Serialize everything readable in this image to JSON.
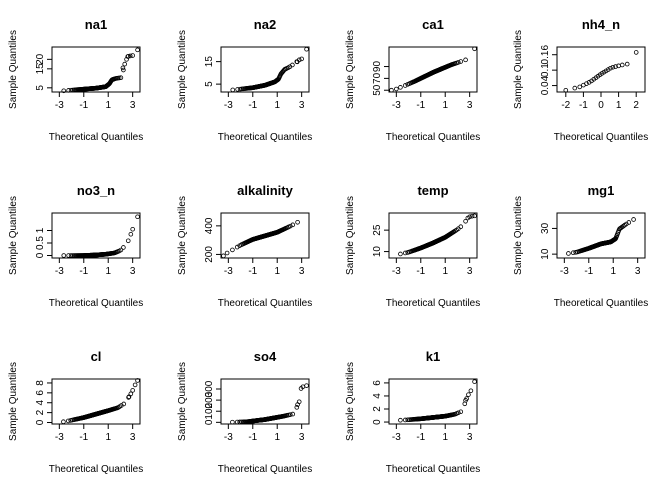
{
  "chart_data": [
    {
      "type": "scatter",
      "title": "na1",
      "xlabel": "Theoretical Quantiles",
      "ylabel": "Sample Quantiles",
      "xlim": [
        -3.6,
        3.6
      ],
      "xticks": [
        -3,
        -1,
        1,
        3
      ],
      "ylim": [
        2.8,
        26.5
      ],
      "yticks": [
        5,
        15,
        20
      ],
      "n": 120,
      "q": [
        [
          -3.4,
          3.0
        ],
        [
          -2.0,
          3.8
        ],
        [
          -1.0,
          4.3
        ],
        [
          0,
          4.8
        ],
        [
          0.8,
          5.6
        ],
        [
          1.1,
          7.2
        ],
        [
          1.3,
          9.2
        ],
        [
          1.6,
          9.9
        ],
        [
          2.1,
          10.4
        ],
        [
          2.3,
          16.0
        ],
        [
          2.6,
          21.5
        ],
        [
          3.0,
          22.0
        ],
        [
          3.4,
          25.0
        ]
      ],
      "tail": [
        [
          2.2,
          15.5
        ],
        [
          2.35,
          17.5
        ],
        [
          2.5,
          20.0
        ],
        [
          2.6,
          21.5
        ],
        [
          2.8,
          21.8
        ],
        [
          3.0,
          22.0
        ],
        [
          3.4,
          25.0
        ]
      ]
    },
    {
      "type": "scatter",
      "title": "na2",
      "xlabel": "Theoretical Quantiles",
      "ylabel": "Sample Quantiles",
      "xlim": [
        -3.6,
        3.6
      ],
      "xticks": [
        -3,
        -1,
        1,
        3
      ],
      "ylim": [
        1.5,
        21.5
      ],
      "yticks": [
        5,
        15
      ],
      "n": 120,
      "q": [
        [
          -3.4,
          2.0
        ],
        [
          -2.0,
          2.8
        ],
        [
          -1.0,
          3.4
        ],
        [
          0,
          4.5
        ],
        [
          0.8,
          6.0
        ],
        [
          1.1,
          7.2
        ],
        [
          1.3,
          9.5
        ],
        [
          1.6,
          11.5
        ],
        [
          2.0,
          12.6
        ],
        [
          2.5,
          14.5
        ],
        [
          3.0,
          16.0
        ],
        [
          3.4,
          20.5
        ]
      ],
      "tail": [
        [
          2.6,
          15.0
        ],
        [
          2.8,
          15.8
        ],
        [
          3.0,
          16.2
        ],
        [
          3.4,
          20.5
        ]
      ]
    },
    {
      "type": "scatter",
      "title": "ca1",
      "xlabel": "Theoretical Quantiles",
      "ylabel": "Sample Quantiles",
      "xlim": [
        -3.6,
        3.6
      ],
      "xticks": [
        -3,
        -1,
        1,
        3
      ],
      "ylim": [
        47,
        123
      ],
      "yticks": [
        50,
        70,
        90
      ],
      "n": 130,
      "q": [
        [
          -3.4,
          50
        ],
        [
          -2.5,
          56
        ],
        [
          -1.5,
          65
        ],
        [
          -0.5,
          75
        ],
        [
          0,
          80
        ],
        [
          0.8,
          87
        ],
        [
          1.5,
          93
        ],
        [
          2.5,
          100
        ],
        [
          3.0,
          104
        ],
        [
          3.4,
          120
        ]
      ],
      "tail": [
        [
          -3.4,
          50
        ],
        [
          -3.0,
          52
        ],
        [
          3.4,
          120
        ]
      ]
    },
    {
      "type": "scatter",
      "title": "nh4_n",
      "xlabel": "Theoretical Quantiles",
      "ylabel": "Sample Quantiles",
      "xlim": [
        -2.5,
        2.5
      ],
      "xticks": [
        -2,
        -1,
        0,
        1,
        2
      ],
      "ylim": [
        0.015,
        0.19
      ],
      "yticks": [
        0.04,
        0.1,
        0.16
      ],
      "n": 22,
      "q": [
        [
          -2.1,
          0.02
        ],
        [
          -1.2,
          0.035
        ],
        [
          -0.6,
          0.055
        ],
        [
          0,
          0.085
        ],
        [
          0.6,
          0.11
        ],
        [
          1.2,
          0.12
        ],
        [
          1.6,
          0.125
        ],
        [
          2.1,
          0.18
        ]
      ],
      "tail": []
    },
    {
      "type": "scatter",
      "title": "no3_n",
      "xlabel": "Theoretical Quantiles",
      "ylabel": "Sample Quantiles",
      "xlim": [
        -3.6,
        3.6
      ],
      "xticks": [
        -3,
        -1,
        1,
        3
      ],
      "ylim": [
        -0.1,
        1.7
      ],
      "yticks": [
        0.0,
        0.5,
        1.0
      ],
      "n": 120,
      "q": [
        [
          -3.4,
          0.0
        ],
        [
          -1.0,
          0.0
        ],
        [
          0,
          0.02
        ],
        [
          0.8,
          0.05
        ],
        [
          1.5,
          0.1
        ],
        [
          2.0,
          0.2
        ],
        [
          2.5,
          0.45
        ],
        [
          2.8,
          0.75
        ],
        [
          3.0,
          1.05
        ],
        [
          3.4,
          1.55
        ]
      ],
      "tail": [
        [
          2.85,
          0.85
        ],
        [
          3.0,
          1.05
        ],
        [
          3.4,
          1.55
        ]
      ]
    },
    {
      "type": "scatter",
      "title": "alkalinity",
      "xlabel": "Theoretical Quantiles",
      "ylabel": "Sample Quantiles",
      "xlim": [
        -3.6,
        3.6
      ],
      "xticks": [
        -3,
        -1,
        1,
        3
      ],
      "ylim": [
        175,
        490
      ],
      "yticks": [
        200,
        400
      ],
      "n": 130,
      "q": [
        [
          -3.4,
          190
        ],
        [
          -3.0,
          215
        ],
        [
          -2.0,
          265
        ],
        [
          -1.0,
          305
        ],
        [
          0,
          330
        ],
        [
          1.0,
          355
        ],
        [
          2.0,
          395
        ],
        [
          3.0,
          440
        ],
        [
          3.4,
          460
        ]
      ],
      "tail": [
        [
          -3.4,
          190
        ],
        [
          -3.1,
          210
        ]
      ]
    },
    {
      "type": "scatter",
      "title": "temp",
      "xlabel": "Theoretical Quantiles",
      "ylabel": "Sample Quantiles",
      "xlim": [
        -3.6,
        3.6
      ],
      "xticks": [
        -3,
        -1,
        1,
        3
      ],
      "ylim": [
        5.5,
        37
      ],
      "yticks": [
        10,
        25
      ],
      "n": 130,
      "q": [
        [
          -3.4,
          7.0
        ],
        [
          -2.0,
          9.5
        ],
        [
          -1.0,
          12.5
        ],
        [
          0,
          16.0
        ],
        [
          1.0,
          20.0
        ],
        [
          2.0,
          25.5
        ],
        [
          2.5,
          29.0
        ],
        [
          2.8,
          33.0
        ],
        [
          3.0,
          34.5
        ],
        [
          3.4,
          35.0
        ]
      ],
      "tail": [
        [
          2.85,
          33.5
        ],
        [
          3.0,
          34.3
        ],
        [
          3.2,
          34.8
        ],
        [
          3.4,
          35.0
        ]
      ]
    },
    {
      "type": "scatter",
      "title": "mg1",
      "xlabel": "Theoretical Quantiles",
      "ylabel": "Sample Quantiles",
      "xlim": [
        -3.6,
        3.6
      ],
      "xticks": [
        -3,
        -1,
        1,
        3
      ],
      "ylim": [
        7,
        42
      ],
      "yticks": [
        10,
        30
      ],
      "n": 130,
      "q": [
        [
          -3.4,
          9.5
        ],
        [
          -2.0,
          11.5
        ],
        [
          -1.0,
          14.5
        ],
        [
          0,
          18.0
        ],
        [
          0.8,
          19.5
        ],
        [
          1.2,
          22.0
        ],
        [
          1.5,
          29.5
        ],
        [
          2.0,
          33.0
        ],
        [
          2.5,
          36.0
        ],
        [
          3.0,
          39.0
        ],
        [
          3.4,
          40.0
        ]
      ],
      "tail": []
    },
    {
      "type": "scatter",
      "title": "cl",
      "xlabel": "Theoretical Quantiles",
      "ylabel": "Sample Quantiles",
      "xlim": [
        -3.6,
        3.6
      ],
      "xticks": [
        -3,
        -1,
        1,
        3
      ],
      "ylim": [
        -0.3,
        8.8
      ],
      "yticks": [
        0,
        2,
        4,
        6,
        8
      ],
      "n": 130,
      "q": [
        [
          -3.4,
          0.0
        ],
        [
          -2.5,
          0.2
        ],
        [
          -1.0,
          1.0
        ],
        [
          0,
          1.7
        ],
        [
          1.0,
          2.4
        ],
        [
          1.8,
          3.0
        ],
        [
          2.3,
          3.8
        ],
        [
          2.6,
          4.8
        ],
        [
          3.0,
          6.5
        ],
        [
          3.4,
          8.5
        ]
      ],
      "tail": [
        [
          2.7,
          5.2
        ],
        [
          2.85,
          5.8
        ],
        [
          3.0,
          6.5
        ],
        [
          3.2,
          7.6
        ],
        [
          3.4,
          8.5
        ]
      ]
    },
    {
      "type": "scatter",
      "title": "so4",
      "xlabel": "Theoretical Quantiles",
      "ylabel": "Sample Quantiles",
      "xlim": [
        -3.6,
        3.6
      ],
      "xticks": [
        -3,
        -1,
        1,
        3
      ],
      "ylim": [
        -15,
        390
      ],
      "yticks": [
        0,
        100,
        200,
        300
      ],
      "n": 130,
      "q": [
        [
          -3.4,
          0
        ],
        [
          -1.5,
          5
        ],
        [
          0,
          25
        ],
        [
          1.5,
          55
        ],
        [
          2.3,
          75
        ],
        [
          2.5,
          110
        ],
        [
          2.7,
          170
        ],
        [
          3.0,
          320
        ],
        [
          3.4,
          330
        ]
      ],
      "tail": [
        [
          2.6,
          135
        ],
        [
          2.8,
          185
        ],
        [
          2.95,
          305
        ],
        [
          3.1,
          320
        ],
        [
          3.4,
          330
        ]
      ]
    },
    {
      "type": "scatter",
      "title": "k1",
      "xlabel": "Theoretical Quantiles",
      "ylabel": "Sample Quantiles",
      "xlim": [
        -3.6,
        3.6
      ],
      "xticks": [
        -3,
        -1,
        1,
        3
      ],
      "ylim": [
        -0.3,
        6.6
      ],
      "yticks": [
        0,
        2,
        4,
        6
      ],
      "n": 130,
      "q": [
        [
          -3.4,
          0.2
        ],
        [
          -2.0,
          0.35
        ],
        [
          -1.0,
          0.5
        ],
        [
          0,
          0.7
        ],
        [
          1.0,
          0.9
        ],
        [
          1.8,
          1.2
        ],
        [
          2.3,
          1.6
        ],
        [
          2.6,
          3.0
        ],
        [
          2.8,
          4.0
        ],
        [
          3.1,
          4.8
        ],
        [
          3.4,
          6.2
        ]
      ],
      "tail": [
        [
          2.6,
          2.8
        ],
        [
          2.75,
          3.6
        ],
        [
          2.9,
          4.2
        ],
        [
          3.1,
          4.8
        ],
        [
          3.4,
          6.2
        ]
      ]
    }
  ]
}
